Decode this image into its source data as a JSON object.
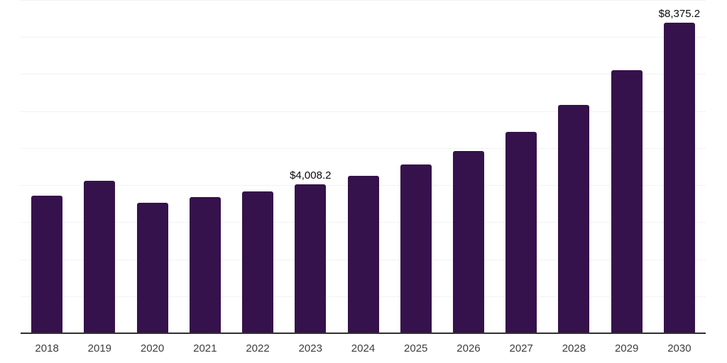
{
  "chart_data": {
    "type": "bar",
    "title": "",
    "xlabel": "",
    "ylabel": "",
    "categories": [
      "2018",
      "2019",
      "2020",
      "2021",
      "2022",
      "2023",
      "2024",
      "2025",
      "2026",
      "2027",
      "2028",
      "2029",
      "2030"
    ],
    "values": [
      3690,
      4090,
      3500,
      3650,
      3820,
      4008.2,
      4240,
      4530,
      4910,
      5420,
      6150,
      7090,
      8375.2
    ],
    "data_labels": [
      "",
      "",
      "",
      "",
      "",
      "$4,008.2",
      "",
      "",
      "",
      "",
      "",
      "",
      "$8,375.2"
    ],
    "ylim": [
      0,
      9000
    ],
    "gridline_step": 1000,
    "grid": "horizontal",
    "legend": "none",
    "y_axis_tick_labels_shown": false,
    "colors": {
      "bar": "#35124B",
      "axis_line": "#303030",
      "gridline": "#f2f2f2",
      "x_tick_label": "#3d3d3d",
      "data_label": "#0a0a0a",
      "background": "#ffffff"
    }
  }
}
